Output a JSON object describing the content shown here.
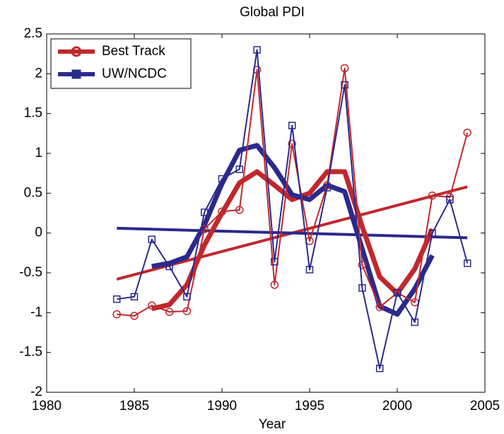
{
  "chart_data": {
    "type": "line",
    "title": "Global PDI",
    "x_label": "Year",
    "x": [
      1984,
      1985,
      1986,
      1987,
      1988,
      1989,
      1990,
      1991,
      1992,
      1993,
      1994,
      1995,
      1996,
      1997,
      1998,
      1999,
      2000,
      2001,
      2002,
      2003,
      2004
    ],
    "trend_x": [
      1984,
      2004
    ],
    "series": [
      {
        "name": "Best Track",
        "color": "#c0282d",
        "marker": "circle",
        "values": [
          -1.02,
          -1.04,
          -0.91,
          -0.99,
          -0.98,
          0.05,
          0.27,
          0.29,
          2.05,
          -0.65,
          1.12,
          -0.1,
          0.6,
          2.07,
          -0.4,
          -0.93,
          -0.75,
          -0.87,
          0.47,
          0.45,
          1.26
        ],
        "smoothed": [
          null,
          null,
          -0.95,
          -0.9,
          -0.65,
          -0.15,
          0.25,
          0.63,
          0.77,
          0.6,
          0.42,
          0.5,
          0.77,
          0.77,
          0.08,
          -0.55,
          -0.76,
          -0.45,
          0.05,
          null,
          null
        ],
        "trend": [
          -0.58,
          0.58
        ]
      },
      {
        "name": "UW/NCDC",
        "color": "#2a2a8c",
        "marker": "square",
        "values": [
          -0.83,
          -0.8,
          -0.08,
          -0.42,
          -0.8,
          0.26,
          0.68,
          0.8,
          2.3,
          -0.36,
          1.35,
          -0.46,
          0.57,
          1.86,
          -0.69,
          -1.7,
          -0.75,
          -1.12,
          0.0,
          0.42,
          -0.38
        ],
        "smoothed": [
          null,
          null,
          -0.42,
          -0.38,
          -0.3,
          0.1,
          0.62,
          1.04,
          1.1,
          0.82,
          0.48,
          0.42,
          0.6,
          0.52,
          -0.2,
          -0.92,
          -1.02,
          -0.7,
          -0.28,
          null,
          null
        ],
        "trend": [
          0.06,
          -0.06
        ]
      }
    ],
    "xlim": [
      1980,
      2005
    ],
    "xticks": [
      1980,
      1985,
      1990,
      1995,
      2000,
      2005
    ],
    "ylim": [
      -2,
      2.5
    ],
    "yticks": [
      -2,
      -1.5,
      -1,
      -0.5,
      0,
      0.5,
      1,
      1.5,
      2,
      2.5
    ],
    "grid": false,
    "legend": "upper left"
  }
}
